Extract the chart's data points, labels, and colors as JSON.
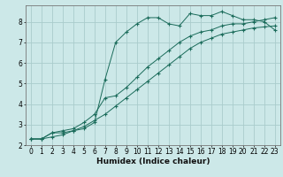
{
  "title": "",
  "xlabel": "Humidex (Indice chaleur)",
  "bg_color": "#cce8e8",
  "grid_color": "#aacccc",
  "line_color": "#1a6b5a",
  "xlim": [
    -0.5,
    23.5
  ],
  "ylim": [
    2.0,
    8.8
  ],
  "yticks": [
    2,
    3,
    4,
    5,
    6,
    7,
    8
  ],
  "xticks": [
    0,
    1,
    2,
    3,
    4,
    5,
    6,
    7,
    8,
    9,
    10,
    11,
    12,
    13,
    14,
    15,
    16,
    17,
    18,
    19,
    20,
    21,
    22,
    23
  ],
  "line1_x": [
    0,
    1,
    2,
    3,
    4,
    5,
    6,
    7,
    8,
    9,
    10,
    11,
    12,
    13,
    14,
    15,
    16,
    17,
    18,
    19,
    20,
    21,
    22,
    23
  ],
  "line1_y": [
    2.3,
    2.3,
    2.6,
    2.6,
    2.7,
    2.8,
    3.1,
    5.2,
    7.0,
    7.5,
    7.9,
    8.2,
    8.2,
    7.9,
    7.8,
    8.4,
    8.3,
    8.3,
    8.5,
    8.3,
    8.1,
    8.1,
    8.0,
    7.6
  ],
  "line2_x": [
    0,
    1,
    2,
    3,
    4,
    5,
    6,
    7,
    8,
    9,
    10,
    11,
    12,
    13,
    14,
    15,
    16,
    17,
    18,
    19,
    20,
    21,
    22,
    23
  ],
  "line2_y": [
    2.3,
    2.3,
    2.6,
    2.7,
    2.8,
    3.1,
    3.5,
    4.3,
    4.4,
    4.8,
    5.3,
    5.8,
    6.2,
    6.6,
    7.0,
    7.3,
    7.5,
    7.6,
    7.8,
    7.9,
    7.9,
    8.0,
    8.1,
    8.2
  ],
  "line3_x": [
    0,
    1,
    2,
    3,
    4,
    5,
    6,
    7,
    8,
    9,
    10,
    11,
    12,
    13,
    14,
    15,
    16,
    17,
    18,
    19,
    20,
    21,
    22,
    23
  ],
  "line3_y": [
    2.3,
    2.3,
    2.4,
    2.5,
    2.7,
    2.9,
    3.2,
    3.5,
    3.9,
    4.3,
    4.7,
    5.1,
    5.5,
    5.9,
    6.3,
    6.7,
    7.0,
    7.2,
    7.4,
    7.5,
    7.6,
    7.7,
    7.75,
    7.8
  ],
  "tick_fontsize": 5.5,
  "xlabel_fontsize": 6.5,
  "marker_size": 3.0,
  "line_width": 0.7
}
